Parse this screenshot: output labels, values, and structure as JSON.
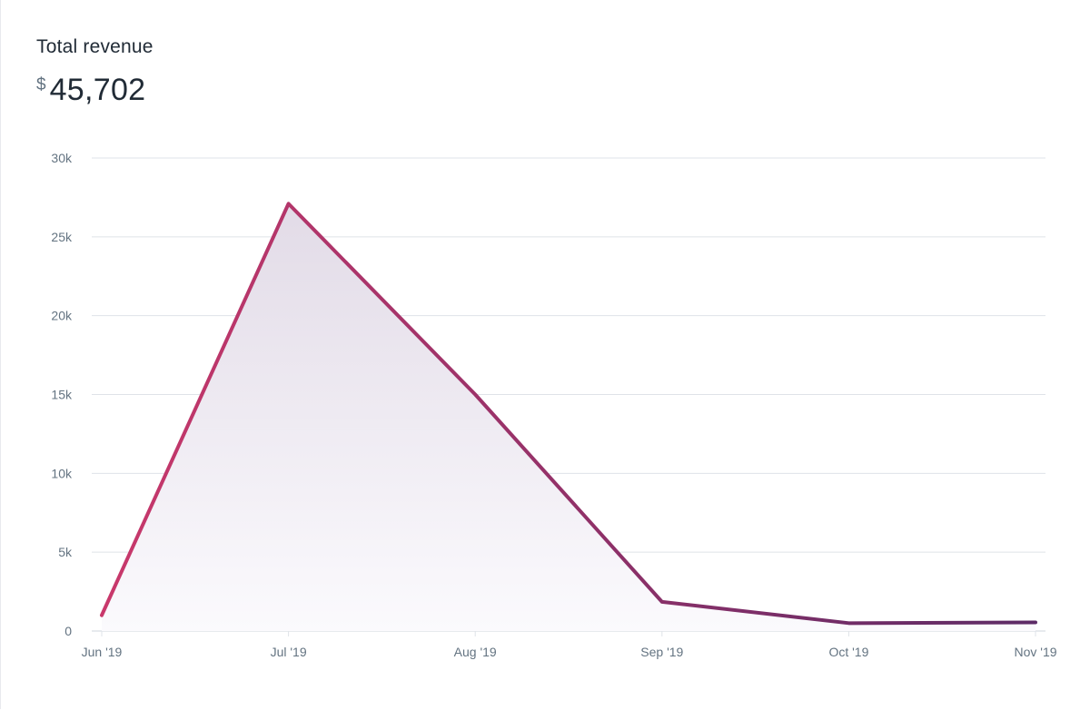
{
  "card": {
    "title": "Total revenue",
    "currency_symbol": "$",
    "total_value": "45,702"
  },
  "chart_data": {
    "type": "area",
    "title": "",
    "xlabel": "",
    "ylabel": "",
    "categories": [
      "Jun '19",
      "Jul '19",
      "Aug '19",
      "Sep '19",
      "Oct '19",
      "Nov '19"
    ],
    "values": [
      1000,
      27100,
      15000,
      1850,
      500,
      550
    ],
    "ylim": [
      0,
      30000
    ],
    "yticks": [
      0,
      5000,
      10000,
      15000,
      20000,
      25000,
      30000
    ],
    "ytick_labels": [
      "0",
      "5k",
      "10k",
      "15k",
      "20k",
      "25k",
      "30k"
    ],
    "grid": true,
    "legend": "none",
    "colors": {
      "line_start": "#c9386b",
      "line_end": "#5c2a66",
      "area_top": "#e2dbe7",
      "area_bottom": "#fbfafd",
      "grid": "#dfe3e8"
    }
  }
}
